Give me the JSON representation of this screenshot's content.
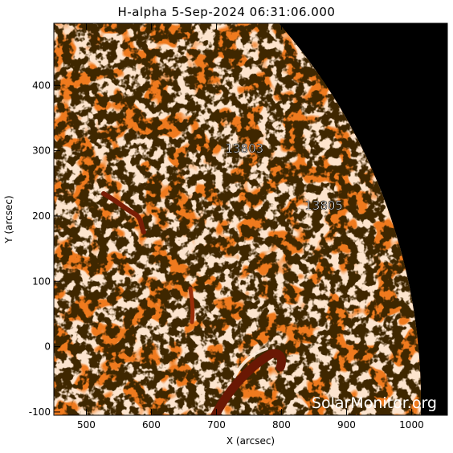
{
  "title": "H-alpha   5-Sep-2024 06:31:06.000",
  "x_axis": {
    "label": "X (arcsec)",
    "range": [
      450,
      1055
    ],
    "ticks": [
      500,
      600,
      700,
      800,
      900,
      1000
    ]
  },
  "y_axis": {
    "label": "Y (arcsec)",
    "range": [
      -105,
      495
    ],
    "ticks": [
      -100,
      0,
      100,
      200,
      300,
      400
    ]
  },
  "active_regions": [
    {
      "label": "13803",
      "x": 743,
      "y": 297
    },
    {
      "label": "13805",
      "x": 865,
      "y": 210
    }
  ],
  "watermark": "SolarMonitor.org",
  "colors": {
    "disk": "#ef7a1e",
    "bright": "#ffeede",
    "filament": "#7a1e06",
    "sky": "#000000"
  }
}
